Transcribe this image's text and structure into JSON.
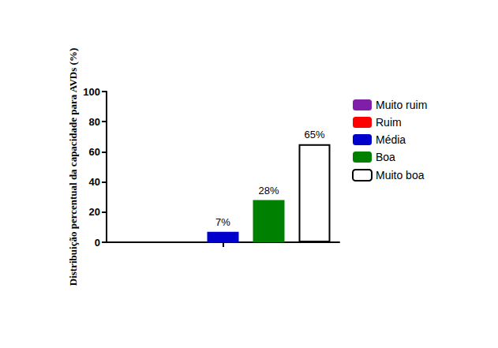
{
  "chart_data": {
    "type": "bar",
    "y_label": "Distribuição percentual da capacidade para AVDs (%)",
    "categories": [
      null
    ],
    "series": [
      {
        "name": "Muito ruim",
        "color": "#7f1fa8",
        "values": [
          0
        ],
        "value_labels": [
          null
        ]
      },
      {
        "name": "Ruim",
        "color": "#ff0000",
        "values": [
          0
        ],
        "value_labels": [
          null
        ]
      },
      {
        "name": "Média",
        "color": "#0000cc",
        "values": [
          7
        ],
        "value_labels": [
          "7%"
        ]
      },
      {
        "name": "Boa",
        "color": "#008000",
        "values": [
          28
        ],
        "value_labels": [
          "28%"
        ]
      },
      {
        "name": "Muito boa",
        "color": "#ffffff",
        "values": [
          65
        ],
        "value_labels": [
          "65%"
        ]
      }
    ],
    "ylim": [
      0,
      100
    ],
    "yticks": [
      0,
      20,
      40,
      60,
      80,
      100
    ],
    "grid": false,
    "legend": "right",
    "data_labels": true,
    "tick_labels": "y"
  }
}
